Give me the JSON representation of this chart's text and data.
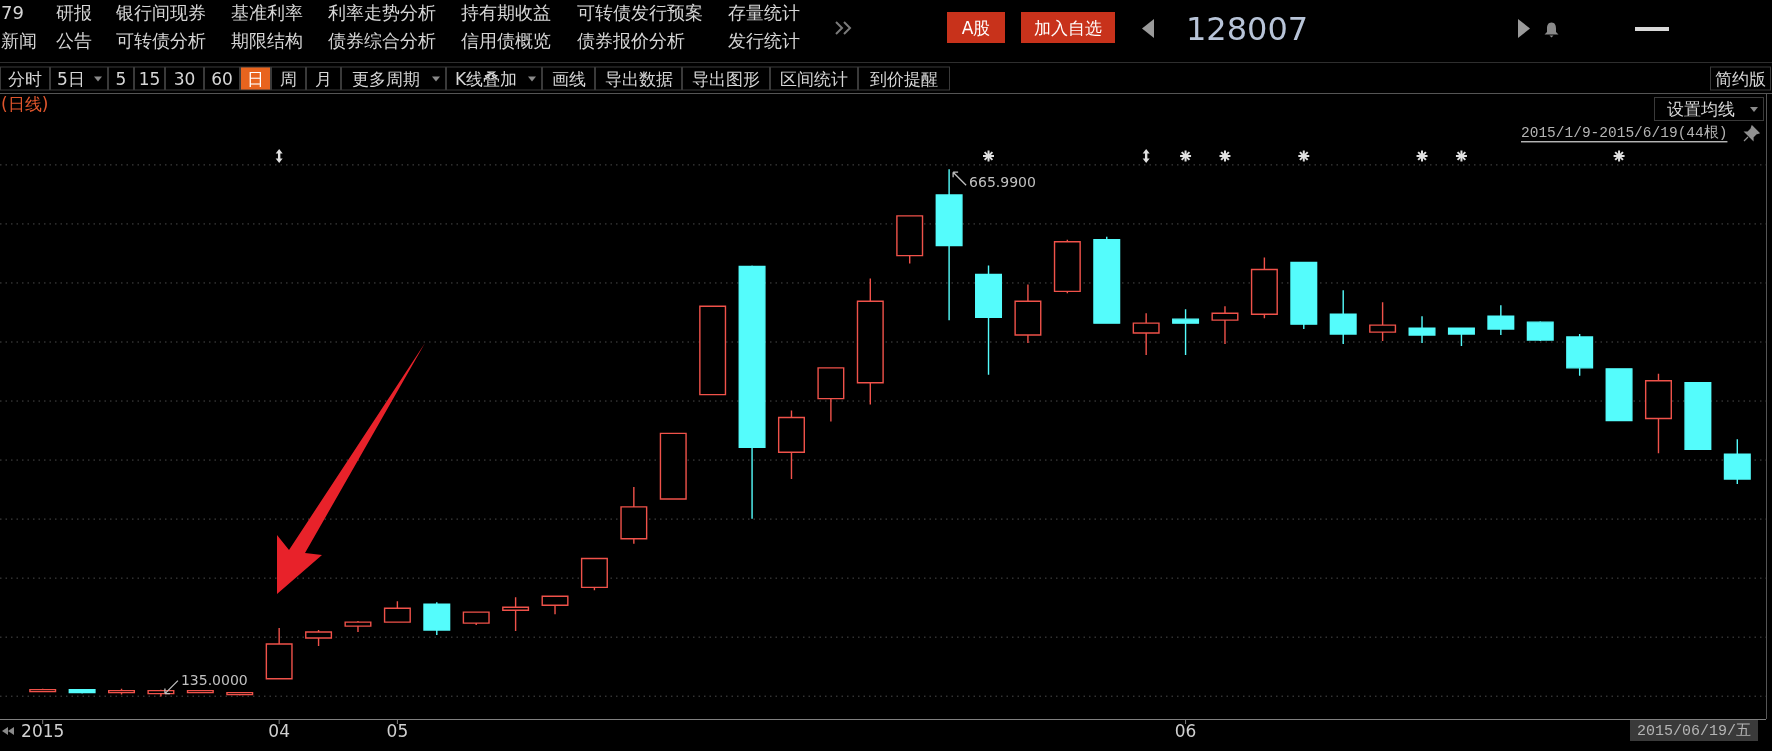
{
  "chart_data": {
    "type": "candlestick",
    "title": "128007",
    "categories": [
      "2015",
      null,
      null,
      null,
      null,
      null,
      "04",
      null,
      null,
      "05",
      null,
      null,
      null,
      null,
      null,
      null,
      null,
      null,
      null,
      null,
      null,
      null,
      null,
      null,
      null,
      null,
      null,
      null,
      null,
      "06",
      null,
      null,
      null,
      null,
      null,
      null,
      null,
      null,
      null,
      null,
      null,
      null,
      null,
      null
    ],
    "ohlc": [
      [
        140,
        143,
        140,
        142
      ],
      [
        142,
        142,
        138,
        139
      ],
      [
        139,
        143,
        137,
        141
      ],
      [
        138,
        142,
        135,
        141
      ],
      [
        139,
        141,
        139,
        141
      ],
      [
        137,
        139,
        136,
        139
      ],
      [
        153,
        204,
        153,
        188
      ],
      [
        194,
        202,
        186,
        200
      ],
      [
        206,
        211,
        200,
        210
      ],
      [
        210,
        231,
        210,
        224
      ],
      [
        228,
        230,
        197,
        202
      ],
      [
        209,
        220,
        207,
        220
      ],
      [
        222,
        235,
        201,
        225
      ],
      [
        227,
        236,
        218,
        236
      ],
      [
        245,
        274,
        242,
        274
      ],
      [
        294,
        346,
        289,
        326
      ],
      [
        334,
        400,
        334,
        400
      ],
      [
        439,
        528,
        439,
        528
      ],
      [
        568,
        569,
        314,
        386
      ],
      [
        381,
        423,
        354,
        416
      ],
      [
        435,
        466,
        412,
        466
      ],
      [
        451,
        556,
        429,
        533
      ],
      [
        579,
        619,
        571,
        619
      ],
      [
        640,
        665.99,
        514,
        589
      ],
      [
        560,
        569,
        459,
        517
      ],
      [
        499,
        550,
        491,
        533
      ],
      [
        543,
        595,
        541,
        593
      ],
      [
        595,
        598,
        511,
        511
      ],
      [
        501,
        521,
        479,
        511
      ],
      [
        515,
        525,
        479,
        511
      ],
      [
        514,
        528,
        490,
        521
      ],
      [
        520,
        577,
        516,
        565
      ],
      [
        572,
        572,
        505,
        510
      ],
      [
        520,
        544,
        490,
        500
      ],
      [
        502,
        532,
        493,
        509
      ],
      [
        506,
        518,
        491,
        499
      ],
      [
        506,
        506,
        488,
        500
      ],
      [
        518,
        529,
        499,
        505
      ],
      [
        512,
        513,
        493,
        494
      ],
      [
        497,
        500,
        458,
        466
      ],
      [
        465,
        465,
        413,
        413
      ],
      [
        415,
        460,
        380,
        453
      ],
      [
        451,
        451,
        384,
        384
      ],
      [
        379,
        394,
        349,
        354
      ]
    ],
    "colors": [
      "#f0524a",
      "#54fcfc",
      "#f0524a",
      "#f0524a",
      "#f0524a",
      "#f0524a",
      "#f0524a",
      "#f0524a",
      "#f0524a",
      "#f0524a",
      "#54fcfc",
      "#f0524a",
      "#f0524a",
      "#f0524a",
      "#f0524a",
      "#f0524a",
      "#f0524a",
      "#f0524a",
      "#54fcfc",
      "#f0524a",
      "#f0524a",
      "#f0524a",
      "#f0524a",
      "#54fcfc",
      "#54fcfc",
      "#f0524a",
      "#f0524a",
      "#54fcfc",
      "#f0524a",
      "#54fcfc",
      "#f0524a",
      "#f0524a",
      "#54fcfc",
      "#54fcfc",
      "#f0524a",
      "#54fcfc",
      "#54fcfc",
      "#54fcfc",
      "#54fcfc",
      "#54fcfc",
      "#54fcfc",
      "#f0524a",
      "#54fcfc",
      "#54fcfc"
    ],
    "grid": true,
    "tick_labels": "x",
    "annotations": [
      "79",
      "研报",
      "银行间现券",
      "基准利率",
      "利率走势分析",
      "持有期收益",
      "可转债发行预案",
      "存量统计",
      "新闻",
      "公告",
      "可转债分析",
      "期限结构",
      "债券综合分析",
      "信用债概览",
      "债券报价分析",
      "发行统计",
      "A股",
      "加入自选",
      "分时",
      "5日",
      "5",
      "15",
      "30",
      "60",
      "日",
      "周",
      "月",
      "更多周期",
      "K线叠加",
      "画线",
      "导出数据",
      "导出图形",
      "区间统计",
      "到价提醒",
      "简约版",
      "(日线)",
      "设置均线",
      "2015/1/9-2015/6/19(44根)",
      "2015/06/19/五",
      "665.9900",
      "135.0000"
    ]
  }
}
